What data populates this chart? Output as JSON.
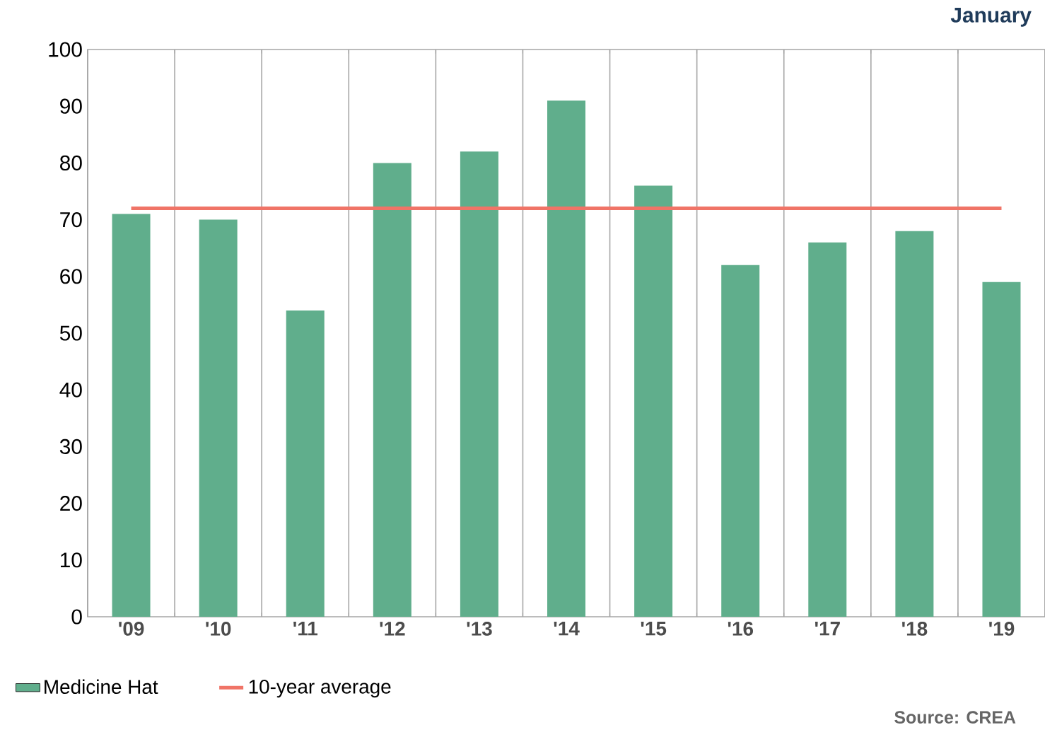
{
  "chart_data": {
    "type": "bar",
    "title": "January",
    "categories": [
      "'09",
      "'10",
      "'11",
      "'12",
      "'13",
      "'14",
      "'15",
      "'16",
      "'17",
      "'18",
      "'19"
    ],
    "series": [
      {
        "name": "Medicine Hat",
        "color": "#60ae8c",
        "values": [
          71,
          70,
          54,
          80,
          82,
          91,
          76,
          62,
          66,
          68,
          59
        ]
      },
      {
        "name": "10-year average",
        "type": "line",
        "color": "#f07467",
        "values": [
          72,
          72,
          72,
          72,
          72,
          72,
          72,
          72,
          72,
          72,
          72
        ]
      }
    ],
    "ylim": [
      0,
      100
    ],
    "yticks": [
      0,
      10,
      20,
      30,
      40,
      50,
      60,
      70,
      80,
      90,
      100
    ],
    "grid": "x",
    "legend": "bottom left",
    "marker": "none",
    "line_style": "solid",
    "annotations": [
      "Source: CREA"
    ]
  }
}
